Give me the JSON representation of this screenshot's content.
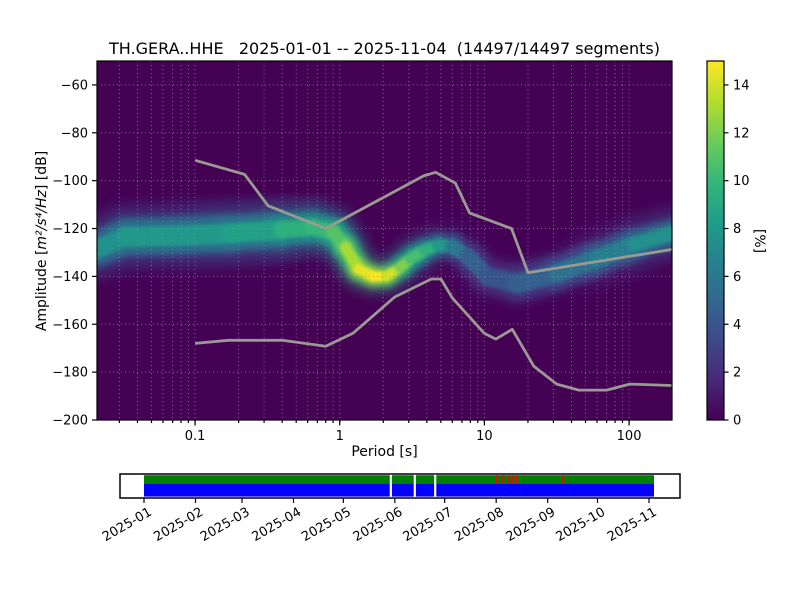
{
  "title": "TH.GERA..HHE   2025-01-01 -- 2025-11-04  (14497/14497 segments)",
  "chart_data": {
    "type": "heatmap",
    "title": "TH.GERA..HHE   2025-01-01 -- 2025-11-04  (14497/14497 segments)",
    "station": "TH.GERA..HHE",
    "date_range": "2025-01-01 -- 2025-11-04",
    "segments": "14497/14497 segments",
    "xlabel": "Period [s]",
    "ylabel": "Amplitude [m²/s⁴/Hz] [dB]",
    "ylabel_parts": {
      "prefix": "Amplitude [",
      "math": "m²/s⁴/Hz",
      "suffix": "] [dB]"
    },
    "x_scale": "log",
    "xlim": [
      0.021,
      198
    ],
    "ylim": [
      -200,
      -50
    ],
    "background_color": "#440154",
    "grid": true,
    "grid_color": "#8b8b7e",
    "x_ticks": [
      {
        "v": 0.1,
        "label": "0.1"
      },
      {
        "v": 1,
        "label": "1"
      },
      {
        "v": 10,
        "label": "10"
      },
      {
        "v": 100,
        "label": "100"
      }
    ],
    "y_ticks": [
      {
        "v": -60,
        "label": "−60"
      },
      {
        "v": -80,
        "label": "−80"
      },
      {
        "v": -100,
        "label": "−100"
      },
      {
        "v": -120,
        "label": "−120"
      },
      {
        "v": -140,
        "label": "−140"
      },
      {
        "v": -160,
        "label": "−160"
      },
      {
        "v": -180,
        "label": "−180"
      },
      {
        "v": -200,
        "label": "−200"
      }
    ],
    "grid_db": [
      -60,
      -80,
      -100,
      -120,
      -140,
      -160,
      -180
    ],
    "colorbar": {
      "label": "[%]",
      "min": 0,
      "max": 15,
      "ticks": [
        0,
        2,
        4,
        6,
        8,
        10,
        12,
        14
      ],
      "viridis_stops": [
        "#440154",
        "#482878",
        "#3e4989",
        "#31688e",
        "#26828e",
        "#1f9e89",
        "#35b779",
        "#6dcd59",
        "#b4de2c",
        "#fde725"
      ]
    },
    "mode_curve_columns": [
      "period_s",
      "amplitude_db",
      "probability_pct",
      "halo_px",
      "core_px"
    ],
    "mode_curve": [
      [
        0.021,
        -128.5,
        7,
        58,
        18
      ],
      [
        0.033,
        -123.5,
        8,
        62,
        20
      ],
      [
        0.08,
        -123.0,
        8,
        64,
        20
      ],
      [
        0.18,
        -122.0,
        8,
        64,
        20
      ],
      [
        0.4,
        -120.5,
        9,
        60,
        18
      ],
      [
        0.65,
        -119.5,
        10,
        52,
        16
      ],
      [
        0.9,
        -121.5,
        10,
        44,
        15
      ],
      [
        1.1,
        -128.0,
        12,
        38,
        13
      ],
      [
        1.35,
        -137.0,
        14,
        32,
        11
      ],
      [
        1.7,
        -140.0,
        15,
        30,
        10
      ],
      [
        2.1,
        -140.0,
        15,
        30,
        10
      ],
      [
        2.6,
        -136.5,
        13,
        32,
        11
      ],
      [
        3.1,
        -132.5,
        11,
        34,
        12
      ],
      [
        3.9,
        -129.0,
        10,
        36,
        12
      ],
      [
        4.8,
        -127.0,
        9,
        38,
        12
      ],
      [
        6.0,
        -127.5,
        7,
        42,
        14
      ],
      [
        7.6,
        -131.5,
        5,
        48,
        16
      ],
      [
        10.5,
        -140.0,
        4,
        52,
        18
      ],
      [
        17.0,
        -143.0,
        4,
        54,
        20
      ],
      [
        32.0,
        -138.5,
        5,
        56,
        20
      ],
      [
        60.0,
        -132.5,
        6,
        56,
        18
      ],
      [
        110.0,
        -126.5,
        7,
        54,
        16
      ],
      [
        198.0,
        -122.0,
        8,
        50,
        14
      ]
    ],
    "noise_models": {
      "color": "#9a9a92",
      "high": [
        [
          0.1,
          -91.5
        ],
        [
          0.22,
          -97.4
        ],
        [
          0.32,
          -110.5
        ],
        [
          0.8,
          -120
        ],
        [
          3.8,
          -98
        ],
        [
          4.6,
          -96.5
        ],
        [
          6.3,
          -101
        ],
        [
          7.9,
          -113.5
        ],
        [
          15.4,
          -120
        ],
        [
          20,
          -138.5
        ],
        [
          198,
          -128.7
        ]
      ],
      "low": [
        [
          0.1,
          -168
        ],
        [
          0.17,
          -166.7
        ],
        [
          0.4,
          -166.7
        ],
        [
          0.8,
          -169.2
        ],
        [
          1.24,
          -163.7
        ],
        [
          2.4,
          -148.6
        ],
        [
          4.3,
          -141.1
        ],
        [
          5,
          -141.1
        ],
        [
          6,
          -149
        ],
        [
          10,
          -163.8
        ],
        [
          12,
          -166.2
        ],
        [
          15.6,
          -162.1
        ],
        [
          21.9,
          -177.5
        ],
        [
          31.6,
          -185
        ],
        [
          45,
          -187.5
        ],
        [
          70,
          -187.5
        ],
        [
          101,
          -185
        ],
        [
          198,
          -185.6
        ]
      ]
    },
    "coverage": {
      "start": "2025-01-01",
      "end": "2025-11-04",
      "month_labels": [
        "2025-01",
        "2025-02",
        "2025-03",
        "2025-04",
        "2025-05",
        "2025-06",
        "2025-07",
        "2025-08",
        "2025-09",
        "2025-10",
        "2025-11"
      ],
      "gap_fractions": [
        0.484,
        0.531,
        0.571
      ],
      "red_fractions": [
        0.692,
        0.704,
        0.716,
        0.724,
        0.731,
        0.822
      ],
      "colors": {
        "processed": "#008000",
        "data": "#0000ff",
        "warning": "#ff0000",
        "gap": "#ffffff"
      }
    }
  }
}
